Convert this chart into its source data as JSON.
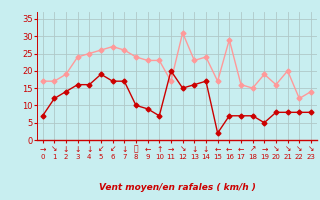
{
  "x": [
    0,
    1,
    2,
    3,
    4,
    5,
    6,
    7,
    8,
    9,
    10,
    11,
    12,
    13,
    14,
    15,
    16,
    17,
    18,
    19,
    20,
    21,
    22,
    23
  ],
  "vent_moyen": [
    7,
    12,
    14,
    16,
    16,
    19,
    17,
    17,
    10,
    9,
    7,
    20,
    15,
    16,
    17,
    2,
    7,
    7,
    7,
    5,
    8,
    8,
    8,
    8
  ],
  "rafales": [
    17,
    17,
    19,
    24,
    25,
    26,
    27,
    26,
    24,
    23,
    23,
    17,
    31,
    23,
    24,
    17,
    29,
    16,
    15,
    19,
    16,
    20,
    12,
    14
  ],
  "wind_arrows": [
    "→",
    "↘",
    "↓",
    "↓",
    "↓",
    "↙",
    "↙",
    "↓",
    "⤶",
    "←",
    "↑",
    "→",
    "↘",
    "↓",
    "↓",
    "←",
    "←",
    "←",
    "↗",
    "→",
    "↘",
    "↘",
    "↘",
    "↘"
  ],
  "moyen_color": "#cc0000",
  "rafales_color": "#ff9999",
  "bg_color": "#c8eef0",
  "grid_color": "#b0c8c8",
  "xlabel": "Vent moyen/en rafales ( km/h )",
  "xlabel_color": "#cc0000",
  "tick_color": "#cc0000",
  "ylim": [
    0,
    37
  ],
  "yticks": [
    0,
    5,
    10,
    15,
    20,
    25,
    30,
    35
  ],
  "xlim": [
    -0.5,
    23.5
  ]
}
